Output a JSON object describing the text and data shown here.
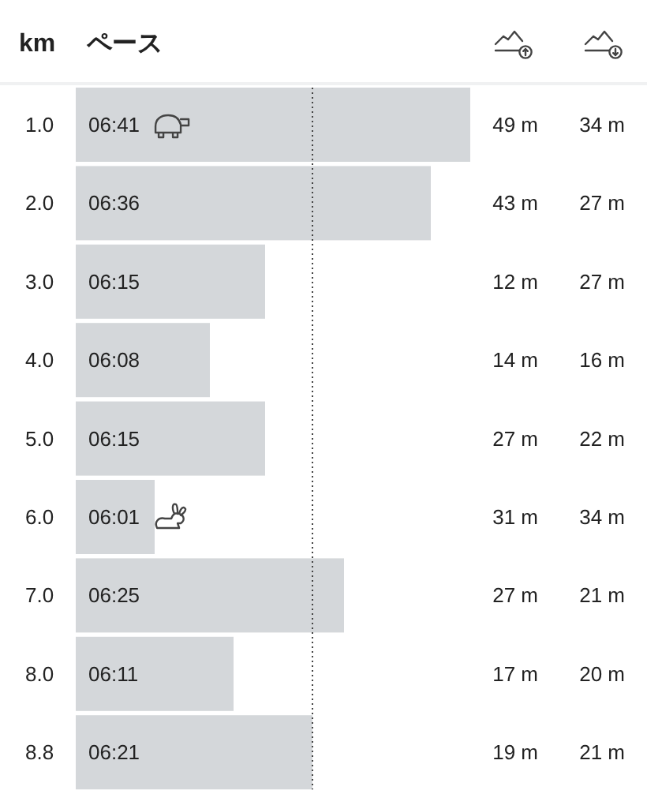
{
  "chart_data": [
    {
      "type": "bar",
      "orientation": "horizontal",
      "ylabel": "km",
      "xlabel": "ペース",
      "categories": [
        "1.0",
        "2.0",
        "3.0",
        "4.0",
        "5.0",
        "6.0",
        "7.0",
        "8.0",
        "8.8"
      ],
      "values": [
        401,
        396,
        375,
        368,
        375,
        361,
        385,
        371,
        381
      ],
      "value_labels": [
        "06:41",
        "06:36",
        "06:15",
        "06:08",
        "06:15",
        "06:01",
        "06:25",
        "06:11",
        "06:21"
      ],
      "color": "#d4d7da",
      "xlim": [
        351,
        401
      ],
      "tick_labels": "y",
      "ref_lines": [
        {
          "axis": "x",
          "value": 381,
          "color": "#444444",
          "line_style": "dotted"
        }
      ]
    },
    {
      "type": "other",
      "annotations": [
        "49 m",
        "43 m",
        "12 m",
        "14 m",
        "27 m",
        "31 m",
        "27 m",
        "17 m",
        "19 m"
      ]
    },
    {
      "type": "other",
      "annotations": [
        "34 m",
        "27 m",
        "27 m",
        "16 m",
        "22 m",
        "34 m",
        "21 m",
        "20 m",
        "21 m"
      ]
    }
  ]
}
